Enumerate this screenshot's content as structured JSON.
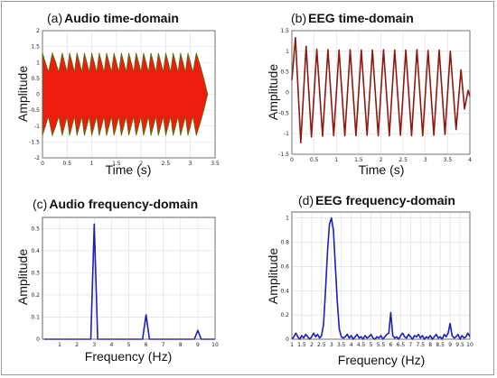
{
  "chart_data": [
    {
      "panel_label": "(a)",
      "title": "Audio time-domain",
      "type": "area",
      "xlabel": "Time (s)",
      "ylabel": "Amplitude",
      "xlim": [
        0,
        3.5
      ],
      "ylim": [
        -2,
        2
      ],
      "xticks": [
        0,
        0.5,
        1,
        1.5,
        2,
        2.5,
        3,
        3.5
      ],
      "xtick_labels": [
        "0",
        "0.5",
        "1",
        "1.5",
        "2",
        "2.5",
        "3",
        "3.5"
      ],
      "yticks": [
        -2,
        -1.5,
        -1,
        -0.5,
        0,
        0.5,
        1,
        1.5,
        2
      ],
      "ytick_labels": [
        "-2",
        "-1.5",
        "-1",
        "-0.5",
        "0",
        "0.5",
        "1",
        "1.5",
        "2"
      ],
      "grid": true,
      "color": "#ee1b0f",
      "edge_color": "#4a7a10",
      "series": [
        {
          "envelope": {
            "x": [
              0.0,
              0.06,
              0.12,
              0.2,
              0.27,
              0.33,
              0.4,
              0.45,
              0.5,
              0.55,
              0.6,
              0.65,
              0.7,
              0.75,
              0.8,
              0.85,
              0.9,
              0.95,
              1.0,
              1.05,
              1.1,
              1.15,
              1.2,
              1.25,
              1.3,
              1.35,
              1.4,
              1.45,
              1.5,
              1.55,
              1.6,
              1.65,
              1.7,
              1.75,
              1.8,
              1.85,
              1.9,
              1.95,
              2.0,
              2.05,
              2.1,
              2.15,
              2.2,
              2.25,
              2.3,
              2.35,
              2.4,
              2.45,
              2.5,
              2.55,
              2.6,
              2.65,
              2.7,
              2.75,
              2.8,
              2.85,
              2.9,
              2.95,
              3.0,
              3.05,
              3.12,
              3.2,
              3.28,
              3.35
            ],
            "upper": [
              1.3,
              1.0,
              0.7,
              1.3,
              1.0,
              0.7,
              1.3,
              1.0,
              0.7,
              1.3,
              1.0,
              0.7,
              1.3,
              1.0,
              0.7,
              1.3,
              1.0,
              0.7,
              1.3,
              1.0,
              0.7,
              1.3,
              1.0,
              0.7,
              1.3,
              1.0,
              0.7,
              1.3,
              1.0,
              0.7,
              1.3,
              1.0,
              0.7,
              1.3,
              1.0,
              0.7,
              1.3,
              1.0,
              0.7,
              1.3,
              1.0,
              0.7,
              1.3,
              1.0,
              0.7,
              1.3,
              1.0,
              0.7,
              1.3,
              1.0,
              0.7,
              1.3,
              1.0,
              0.7,
              1.3,
              1.0,
              0.7,
              1.3,
              1.0,
              0.7,
              1.3,
              0.9,
              0.45,
              0.0
            ]
          }
        }
      ]
    },
    {
      "panel_label": "(b)",
      "title": "EEG time-domain",
      "type": "line",
      "xlabel": "Time (s)",
      "ylabel": "Amplitude",
      "xlim": [
        0,
        4
      ],
      "ylim": [
        -1.5,
        1.5
      ],
      "xticks": [
        0,
        0.5,
        1,
        1.5,
        2,
        2.5,
        3,
        3.5,
        4
      ],
      "xtick_labels": [
        "0",
        "0.5",
        "1",
        "1.5",
        "2",
        "2.5",
        "3",
        "3.5",
        "4"
      ],
      "yticks": [
        -1.5,
        -1,
        -0.5,
        0,
        0.5,
        1,
        1.5
      ],
      "ytick_labels": [
        "-1.5",
        "-1",
        "-0.5",
        "0",
        "0.5",
        "1",
        "1.5"
      ],
      "grid": true,
      "color": "#8b1a10",
      "series": [
        {
          "x": [
            0.0,
            0.08,
            0.2,
            0.32,
            0.44,
            0.56,
            0.69,
            0.81,
            0.94,
            1.06,
            1.19,
            1.31,
            1.44,
            1.56,
            1.69,
            1.81,
            1.94,
            2.06,
            2.19,
            2.31,
            2.44,
            2.56,
            2.69,
            2.81,
            2.94,
            3.06,
            3.19,
            3.31,
            3.44,
            3.56,
            3.69,
            3.8,
            3.88,
            3.96,
            4.0
          ],
          "y": [
            0.3,
            1.33,
            -1.22,
            1.12,
            -1.08,
            1.05,
            -1.06,
            1.04,
            -1.05,
            1.03,
            -1.05,
            1.04,
            -1.05,
            1.03,
            -1.04,
            1.03,
            -1.05,
            1.04,
            -1.05,
            1.03,
            -1.04,
            1.03,
            -1.05,
            1.04,
            -1.05,
            1.02,
            -1.04,
            1.03,
            -1.02,
            1.0,
            -0.9,
            0.55,
            -0.4,
            0.05,
            -0.1
          ]
        }
      ]
    },
    {
      "panel_label": "(c)",
      "title": "Audio frequency-domain",
      "type": "line",
      "xlabel": "Frequency (Hz)",
      "ylabel": "Amplitude",
      "xlim": [
        0,
        10
      ],
      "ylim": [
        0,
        0.55
      ],
      "xticks": [
        1,
        2,
        3,
        4,
        5,
        6,
        7,
        8,
        9,
        10
      ],
      "xtick_labels": [
        "1",
        "2",
        "3",
        "4",
        "5",
        "6",
        "7",
        "8",
        "9",
        "10"
      ],
      "yticks": [
        0,
        0.1,
        0.2,
        0.3,
        0.4,
        0.5
      ],
      "ytick_labels": [
        "0",
        "0.1",
        "0.2",
        "0.3",
        "0.4",
        "0.5"
      ],
      "grid": true,
      "color": "#1f1fb4",
      "series": [
        {
          "x": [
            0.1,
            2.8,
            3.0,
            3.2,
            5.8,
            6.0,
            6.2,
            8.8,
            9.0,
            9.2,
            10.0
          ],
          "y": [
            0.0,
            0.0,
            0.52,
            0.0,
            0.0,
            0.11,
            0.0,
            0.0,
            0.04,
            0.0,
            0.0
          ]
        }
      ]
    },
    {
      "panel_label": "(d)",
      "title": "EEG frequency-domain",
      "type": "line",
      "xlabel": "Frequency (Hz)",
      "ylabel": "Amplitude",
      "xlim": [
        1,
        10
      ],
      "ylim": [
        0,
        1.05
      ],
      "xticks": [
        1,
        1.5,
        2,
        2.5,
        3,
        3.5,
        4,
        4.5,
        5,
        5.5,
        6,
        6.5,
        7,
        7.5,
        8,
        8.5,
        9,
        9.5,
        10
      ],
      "xtick_labels": [
        "1",
        "1.5",
        "2",
        "2.5",
        "3",
        "3.5",
        "4",
        "4.5",
        "5",
        "5.5",
        "6",
        "6.5",
        "7",
        "7.5",
        "8",
        "8.5",
        "9",
        "9.5",
        "10"
      ],
      "yticks": [
        0,
        0.2,
        0.4,
        0.6,
        0.8,
        1
      ],
      "ytick_labels": [
        "0",
        "0.2",
        "0.4",
        "0.6",
        "0.8",
        "1"
      ],
      "grid": true,
      "color": "#1f1fb4",
      "series": [
        {
          "x": [
            1.0,
            1.1,
            1.2,
            1.3,
            1.4,
            1.5,
            1.6,
            1.7,
            1.8,
            1.9,
            2.0,
            2.1,
            2.2,
            2.3,
            2.4,
            2.5,
            2.6,
            2.7,
            2.8,
            2.9,
            3.0,
            3.1,
            3.2,
            3.3,
            3.4,
            3.5,
            3.6,
            3.7,
            3.8,
            3.9,
            4.0,
            4.1,
            4.2,
            4.3,
            4.4,
            4.5,
            4.6,
            4.7,
            4.8,
            4.9,
            5.0,
            5.1,
            5.2,
            5.3,
            5.4,
            5.5,
            5.6,
            5.7,
            5.8,
            5.9,
            6.0,
            6.1,
            6.2,
            6.3,
            6.4,
            6.5,
            6.6,
            6.7,
            6.8,
            6.9,
            7.0,
            7.1,
            7.2,
            7.3,
            7.4,
            7.5,
            7.6,
            7.7,
            7.8,
            7.9,
            8.0,
            8.1,
            8.2,
            8.3,
            8.4,
            8.5,
            8.6,
            8.7,
            8.8,
            8.9,
            9.0,
            9.1,
            9.2,
            9.3,
            9.4,
            9.5,
            9.6,
            9.7,
            9.8,
            9.9,
            10.0
          ],
          "y": [
            0.0,
            0.02,
            0.05,
            0.02,
            0.0,
            0.03,
            0.01,
            0.04,
            0.02,
            0.0,
            0.02,
            0.05,
            0.02,
            0.04,
            0.01,
            0.03,
            0.12,
            0.4,
            0.72,
            0.95,
            1.0,
            0.9,
            0.6,
            0.3,
            0.08,
            0.02,
            0.01,
            0.02,
            0.04,
            0.01,
            0.03,
            0.0,
            0.02,
            0.04,
            0.01,
            0.02,
            0.0,
            0.03,
            0.01,
            0.02,
            0.04,
            0.01,
            0.0,
            0.02,
            0.01,
            0.03,
            0.0,
            0.02,
            0.04,
            0.05,
            0.22,
            0.03,
            0.01,
            0.02,
            0.0,
            0.03,
            0.05,
            0.02,
            0.01,
            0.04,
            0.02,
            0.0,
            0.03,
            0.02,
            0.04,
            0.01,
            0.03,
            0.0,
            0.02,
            0.01,
            0.03,
            0.0,
            0.02,
            0.04,
            0.01,
            0.02,
            0.0,
            0.04,
            0.02,
            0.05,
            0.13,
            0.03,
            0.01,
            0.02,
            0.04,
            0.0,
            0.03,
            0.01,
            0.02,
            0.05,
            0.02
          ]
        }
      ]
    }
  ]
}
